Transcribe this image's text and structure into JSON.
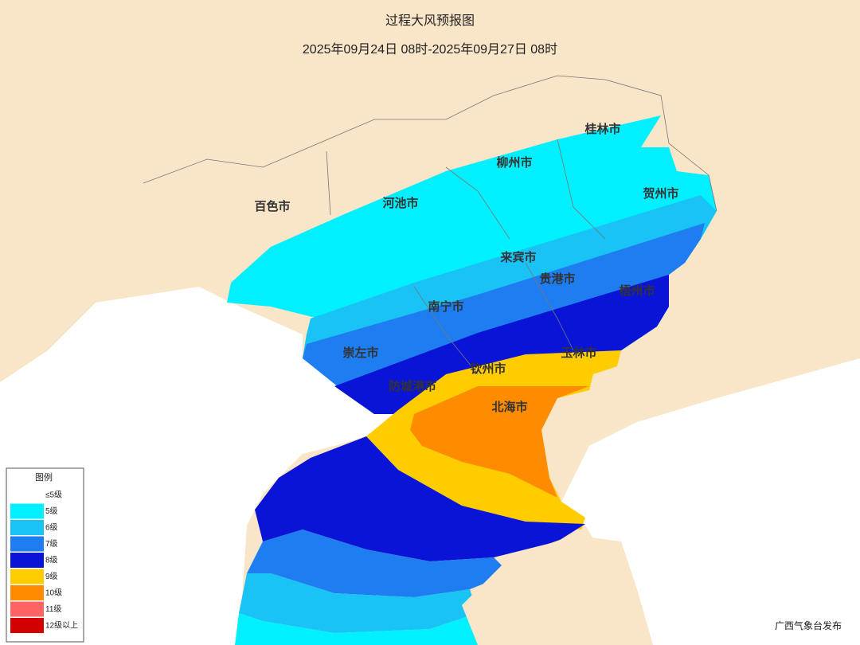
{
  "header": {
    "title": "过程大风预报图",
    "subtitle": "2025年09月24日 08时-2025年09月27日 08时"
  },
  "cities": [
    "桂林市",
    "柳州市",
    "贺州市",
    "百色市",
    "河池市",
    "来宾市",
    "贵港市",
    "梧州市",
    "南宁市",
    "崇左市",
    "玉林市",
    "钦州市",
    "防城港市",
    "北海市"
  ],
  "legend": {
    "title": "图例",
    "items": [
      {
        "label": "≤5级",
        "color": "#ffffff"
      },
      {
        "label": "5级",
        "color": "#00f0ff"
      },
      {
        "label": "6级",
        "color": "#19c3f5"
      },
      {
        "label": "7级",
        "color": "#1e7df0"
      },
      {
        "label": "8级",
        "color": "#0a14d7"
      },
      {
        "label": "9级",
        "color": "#ffcc00"
      },
      {
        "label": "10级",
        "color": "#ff8c00"
      },
      {
        "label": "11级",
        "color": "#ff6464"
      },
      {
        "label": "12级以上",
        "color": "#d20000"
      }
    ]
  },
  "source": "广西气象台发布"
}
